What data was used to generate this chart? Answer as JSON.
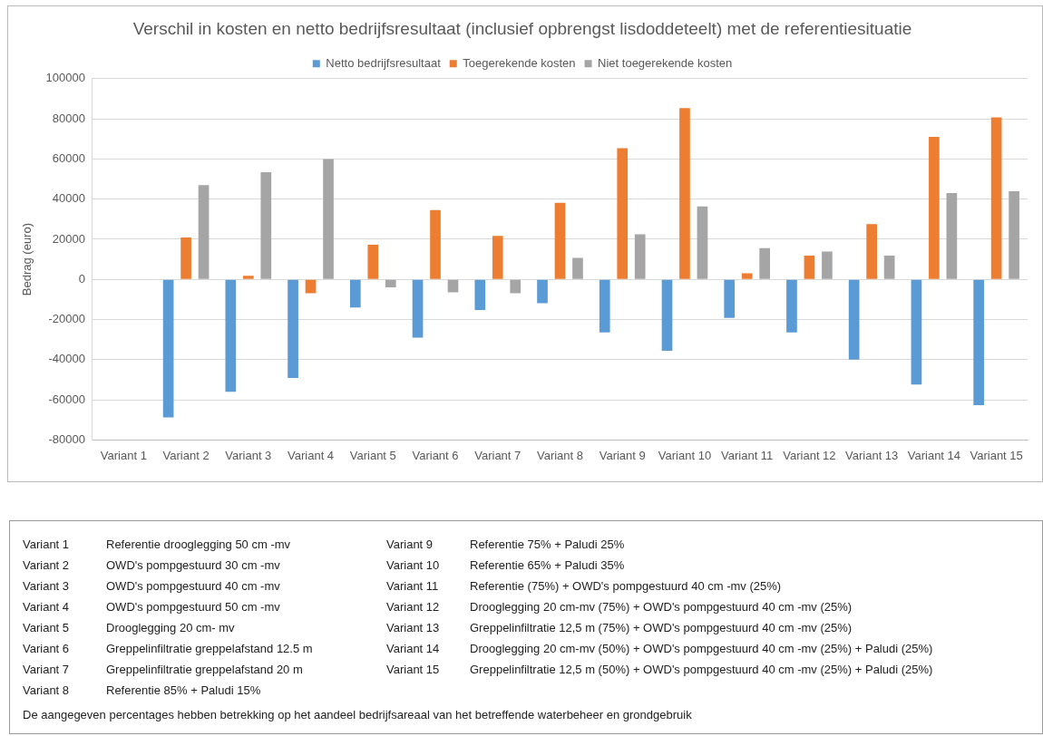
{
  "chart_data": {
    "type": "bar",
    "title": "Verschil in kosten en netto bedrijfsresultaat (inclusief opbrengst lisdoddeteelt) met de referentiesituatie",
    "ylabel": "Bedrag (euro)",
    "categories": [
      "Variant 1",
      "Variant 2",
      "Variant 3",
      "Variant 4",
      "Variant 5",
      "Variant 6",
      "Variant 7",
      "Variant 8",
      "Variant 9",
      "Variant 10",
      "Variant 11",
      "Variant 12",
      "Variant 13",
      "Variant 14",
      "Variant 15"
    ],
    "series": [
      {
        "name": "Netto bedrijfsresultaat",
        "color": "#5b9bd5",
        "values": [
          0,
          -68700,
          -56000,
          -49100,
          -14000,
          -29000,
          -15200,
          -11900,
          -26400,
          -35600,
          -19200,
          -26400,
          -40000,
          -52400,
          -62700
        ]
      },
      {
        "name": "Toegerekende kosten",
        "color": "#ed7d31",
        "values": [
          0,
          20900,
          1800,
          -6900,
          17300,
          34600,
          21700,
          38100,
          65400,
          85400,
          3100,
          11900,
          27500,
          71000,
          80700
        ]
      },
      {
        "name": "Niet toegerekende kosten",
        "color": "#a5a5a5",
        "values": [
          0,
          47000,
          53400,
          60000,
          -3900,
          -6400,
          -6900,
          10700,
          22500,
          36300,
          15600,
          13900,
          11900,
          43000,
          43900
        ]
      }
    ],
    "ylim": [
      -80000,
      100000
    ],
    "yticks": [
      -80000,
      -60000,
      -40000,
      -20000,
      0,
      20000,
      40000,
      60000,
      80000,
      100000
    ],
    "grid": "y",
    "legend": "top",
    "annotations": [
      "Variant 1\tReferentie drooglegging 50 cm -mv",
      "Variant 2\tOWD's pompgestuurd 30 cm -mv",
      "Variant 3\tOWD's pompgestuurd 40 cm -mv",
      "Variant 4\tOWD's pompgestuurd 50 cm -mv",
      "Variant 5\tDrooglegging 20 cm- mv",
      "Variant 6\tGreppelinfiltratie greppelafstand 12.5 m",
      "Variant 7\tGreppelinfiltratie greppelafstand 20 m",
      "Variant 8\tReferentie 85% + Paludi 15%",
      "Variant 9\tReferentie 75% + Paludi 25%",
      "Variant 10\tReferentie 65% + Paludi 35%",
      "Variant 11\tReferentie (75%) + OWD's pompgestuurd 40 cm -mv (25%)",
      "Variant 12\tDrooglegging 20 cm-mv (75%) + OWD's pompgestuurd 40 cm -mv (25%)",
      "Variant 13\tGreppelinfiltratie 12,5 m (75%) + OWD's pompgestuurd 40 cm -mv (25%)",
      "Variant 14\tDrooglegging 20 cm-mv (50%) + OWD's pompgestuurd 40 cm -mv (25%) + Paludi (25%)",
      "Variant 15\tGreppelinfiltratie 12,5 m (50%) + OWD's pompgestuurd 40 cm -mv (25%) + Paludi (25%)",
      "De aangegeven percentages hebben betrekking op het aandeel bedrijfsareaal van het betreffende waterbeheer en grondgebruik"
    ]
  }
}
